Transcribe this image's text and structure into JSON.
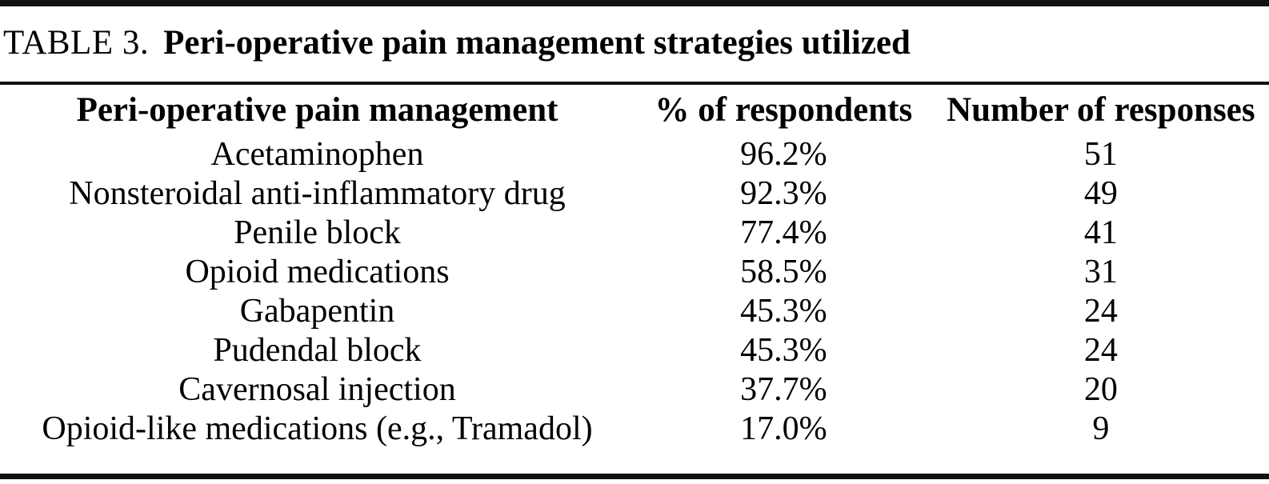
{
  "table": {
    "label": "TABLE 3.",
    "title": "Peri-operative pain management strategies utilized",
    "columns": [
      "Peri-operative pain management",
      "% of respondents",
      "Number of responses"
    ],
    "rows": [
      {
        "strategy": "Acetaminophen",
        "percent": "96.2%",
        "count": "51"
      },
      {
        "strategy": "Nonsteroidal anti-inflammatory drug",
        "percent": "92.3%",
        "count": "49"
      },
      {
        "strategy": "Penile block",
        "percent": "77.4%",
        "count": "41"
      },
      {
        "strategy": "Opioid medications",
        "percent": "58.5%",
        "count": "31"
      },
      {
        "strategy": "Gabapentin",
        "percent": "45.3%",
        "count": "24"
      },
      {
        "strategy": "Pudendal block",
        "percent": "45.3%",
        "count": "24"
      },
      {
        "strategy": "Cavernosal injection",
        "percent": "37.7%",
        "count": "20"
      },
      {
        "strategy": "Opioid-like medications (e.g., Tramadol)",
        "percent": "17.0%",
        "count": "9"
      }
    ]
  },
  "chart_data": {
    "type": "table",
    "title": "TABLE 3. Peri-operative pain management strategies utilized",
    "columns": [
      "Peri-operative pain management",
      "% of respondents",
      "Number of responses"
    ],
    "categories": [
      "Acetaminophen",
      "Nonsteroidal anti-inflammatory drug",
      "Penile block",
      "Opioid medications",
      "Gabapentin",
      "Pudendal block",
      "Cavernosal injection",
      "Opioid-like medications (e.g., Tramadol)"
    ],
    "series": [
      {
        "name": "% of respondents",
        "values": [
          96.2,
          92.3,
          77.4,
          58.5,
          45.3,
          45.3,
          37.7,
          17.0
        ]
      },
      {
        "name": "Number of responses",
        "values": [
          51,
          49,
          41,
          31,
          24,
          24,
          20,
          9
        ]
      }
    ]
  }
}
